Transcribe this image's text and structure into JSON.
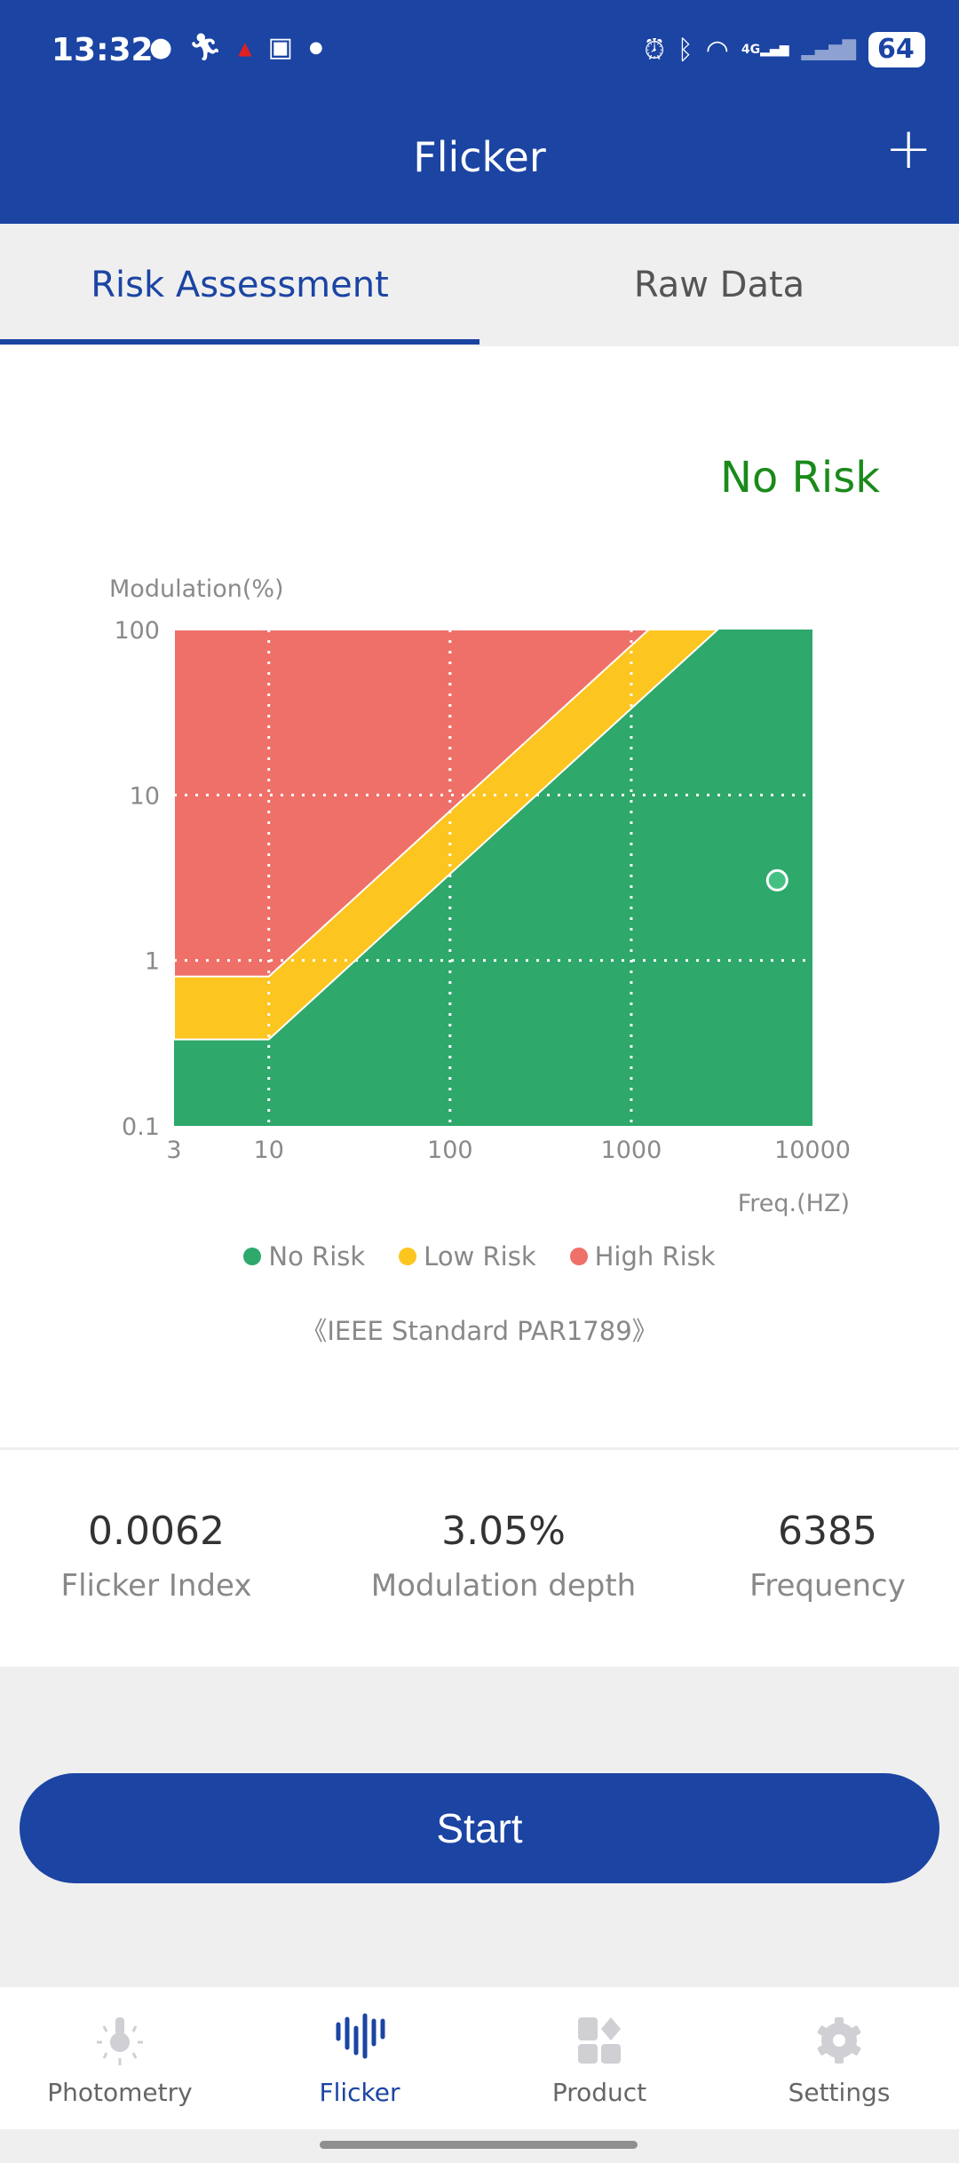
{
  "status_bar": {
    "time": "13:32",
    "battery": "64",
    "network": "4G",
    "icons": [
      "chat-bubble-icon",
      "running-icon",
      "warning-triangle-icon",
      "gift-icon",
      "dot-icon",
      "alarm-icon",
      "bluetooth-icon",
      "wifi-icon",
      "signal-icon",
      "signal-icon-2",
      "battery-icon"
    ]
  },
  "header": {
    "title": "Flicker",
    "add_icon": "plus-icon"
  },
  "tabs": [
    {
      "label": "Risk Assessment",
      "active": true
    },
    {
      "label": "Raw Data",
      "active": false
    }
  ],
  "result": {
    "risk_label": "No Risk",
    "color": "#1a8a1a"
  },
  "chart_data": {
    "type": "area",
    "ylabel": "Modulation(%)",
    "xlabel": "Freq.(HZ)",
    "x_scale": "log",
    "y_scale": "log",
    "xlim": [
      3,
      10000
    ],
    "ylim": [
      0.1,
      100
    ],
    "x_ticks": [
      "3",
      "10",
      "100",
      "1000",
      "10000"
    ],
    "y_ticks": [
      "100",
      "10",
      "1",
      "0.1"
    ],
    "grid": true,
    "regions": [
      {
        "name": "High Risk",
        "color": "#ee7068",
        "boundary_below": [
          [
            3,
            0.8
          ],
          [
            10,
            0.8
          ],
          [
            1250,
            100
          ]
        ]
      },
      {
        "name": "Low Risk",
        "color": "#fcc520",
        "boundary_below": [
          [
            3,
            0.333
          ],
          [
            10,
            0.333
          ],
          [
            3000,
            100
          ]
        ]
      },
      {
        "name": "No Risk",
        "color": "#2ea86b"
      }
    ],
    "point": {
      "x": 6385,
      "y": 3.05
    },
    "legend": [
      {
        "label": "No Risk",
        "color": "#2ea86b"
      },
      {
        "label": "Low Risk",
        "color": "#fcc520"
      },
      {
        "label": "High Risk",
        "color": "#ee7068"
      }
    ],
    "legend_placement": "bottom",
    "standard": "《IEEE Standard PAR1789》"
  },
  "stats": [
    {
      "value": "0.0062",
      "label": "Flicker Index"
    },
    {
      "value": "3.05%",
      "label": "Modulation depth"
    },
    {
      "value": "6385",
      "label": "Frequency"
    }
  ],
  "start_button": "Start",
  "nav": [
    {
      "label": "Photometry",
      "icon": "bulb-icon"
    },
    {
      "label": "Flicker",
      "icon": "waveform-icon",
      "active": true
    },
    {
      "label": "Product",
      "icon": "grid-icon"
    },
    {
      "label": "Settings",
      "icon": "gear-icon"
    }
  ],
  "colors": {
    "primary": "#1b44a3"
  }
}
